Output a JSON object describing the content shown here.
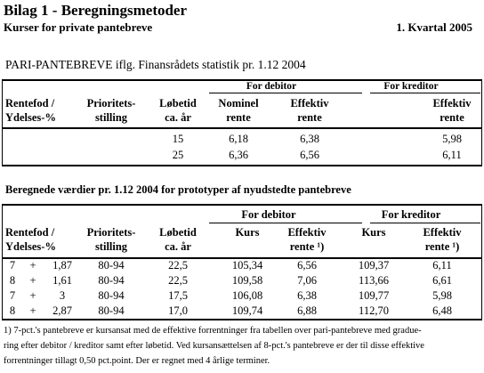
{
  "header": {
    "title": "Bilag 1 - Beregningsmetoder",
    "subtitle": "Kurser for private pantebreve",
    "period": "1. Kvartal 2005"
  },
  "section1": {
    "title": "PARI-PANTEBREVE iflg. Finansrådets statistik pr. 1.12 2004",
    "groups": [
      "For debitor",
      "For kreditor"
    ],
    "columns": [
      [
        "Rentefod /",
        "Ydelses-%"
      ],
      [
        "Prioritets-",
        "stilling"
      ],
      [
        "Løbetid",
        "ca. år"
      ],
      [
        "Nominel",
        "rente"
      ],
      [
        "Effektiv",
        "rente"
      ],
      [
        "Effektiv",
        "rente"
      ]
    ],
    "rows": [
      [
        "15",
        "6,18",
        "6,38",
        "5,98"
      ],
      [
        "25",
        "6,36",
        "6,56",
        "6,11"
      ]
    ]
  },
  "section2": {
    "title": "Beregnede værdier pr. 1.12 2004 for prototyper af nyudstedte pantebreve",
    "groups": [
      "For debitor",
      "For kreditor"
    ],
    "columns": [
      [
        "Rentefod /",
        "Ydelses-%"
      ],
      [
        "Prioritets-",
        "stilling"
      ],
      [
        "Løbetid",
        "ca. år"
      ],
      [
        "Kurs"
      ],
      [
        "Effektiv",
        "rente ¹)"
      ],
      [
        "Kurs"
      ],
      [
        "Effektiv",
        "rente ¹)"
      ]
    ],
    "rows": [
      [
        "7",
        "+",
        "1,87",
        "80-94",
        "22,5",
        "105,34",
        "6,56",
        "109,37",
        "6,11"
      ],
      [
        "8",
        "+",
        "1,61",
        "80-94",
        "22,5",
        "109,58",
        "7,06",
        "113,66",
        "6,61"
      ],
      [
        "7",
        "+",
        "3",
        "80-94",
        "17,5",
        "106,08",
        "6,38",
        "109,77",
        "5,98"
      ],
      [
        "8",
        "+",
        "2,87",
        "80-94",
        "17,0",
        "109,74",
        "6,88",
        "112,70",
        "6,48"
      ]
    ]
  },
  "footnote": [
    "1) 7-pct.'s  pantebreve er kursansat med de effektive forrentninger fra tabellen over pari-pantebreve med gradue-",
    "ring efter debitor / kreditor samt efter løbetid. Ved kursansættelsen af 8-pct.'s pantebreve er der til disse effektive",
    "forrentninger tillagt 0,50 pct.point. Der er regnet med 4 årlige terminer."
  ]
}
